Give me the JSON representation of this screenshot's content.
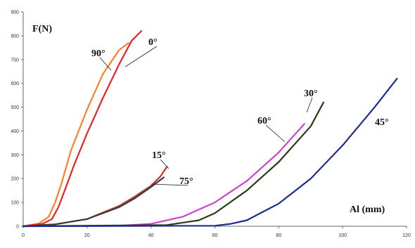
{
  "chart_data": {
    "type": "line",
    "title": "",
    "xlabel": "Al (mm)",
    "ylabel": "F(N)",
    "xlim": [
      0,
      120
    ],
    "ylim": [
      0,
      900
    ],
    "xticks": [
      "0",
      "20",
      "40",
      "60",
      "80",
      "100",
      "120"
    ],
    "yticks": [
      "0",
      "100",
      "200",
      "300",
      "400",
      "500",
      "600",
      "700",
      "800",
      "900"
    ],
    "grid": false,
    "legend": "none",
    "series": [
      {
        "name": "90°",
        "color": "#ff7f27",
        "x": [
          0,
          5,
          8,
          10,
          12,
          15,
          20,
          25,
          30,
          33
        ],
        "y": [
          0,
          12,
          40,
          100,
          180,
          320,
          490,
          640,
          740,
          770
        ]
      },
      {
        "name": "0°",
        "color": "#e8232a",
        "x": [
          0,
          6,
          9,
          11,
          13,
          16,
          20,
          25,
          30,
          34,
          37
        ],
        "y": [
          0,
          10,
          30,
          80,
          150,
          260,
          390,
          540,
          680,
          780,
          820
        ]
      },
      {
        "name": "15°",
        "color": "#c0392b",
        "x": [
          0,
          10,
          20,
          30,
          35,
          40,
          43,
          45
        ],
        "y": [
          0,
          8,
          30,
          85,
          125,
          170,
          210,
          250
        ]
      },
      {
        "name": "75°",
        "color": "#3a3a3a",
        "x": [
          0,
          10,
          20,
          30,
          35,
          40,
          44
        ],
        "y": [
          0,
          8,
          30,
          80,
          118,
          165,
          205
        ]
      },
      {
        "name": "60°",
        "color": "#cc44cc",
        "x": [
          0,
          30,
          40,
          50,
          60,
          70,
          80,
          88
        ],
        "y": [
          0,
          2,
          10,
          40,
          100,
          190,
          310,
          430
        ]
      },
      {
        "name": "30°",
        "color": "#2b3a16",
        "x": [
          0,
          45,
          55,
          60,
          70,
          80,
          90,
          94
        ],
        "y": [
          0,
          5,
          25,
          55,
          150,
          270,
          420,
          520
        ]
      },
      {
        "name": "45°",
        "color": "#1b2d8f",
        "x": [
          0,
          60,
          65,
          70,
          80,
          90,
          100,
          110,
          117
        ],
        "y": [
          0,
          2,
          10,
          25,
          95,
          200,
          340,
          500,
          620
        ]
      }
    ],
    "annotations": [
      {
        "text": "90°",
        "series": "90°"
      },
      {
        "text": "0°",
        "series": "0°"
      },
      {
        "text": "15°",
        "series": "15°"
      },
      {
        "text": "75°",
        "series": "75°"
      },
      {
        "text": "60°",
        "series": "60°"
      },
      {
        "text": "30°",
        "series": "30°"
      },
      {
        "text": "45°",
        "series": "45°"
      }
    ]
  }
}
